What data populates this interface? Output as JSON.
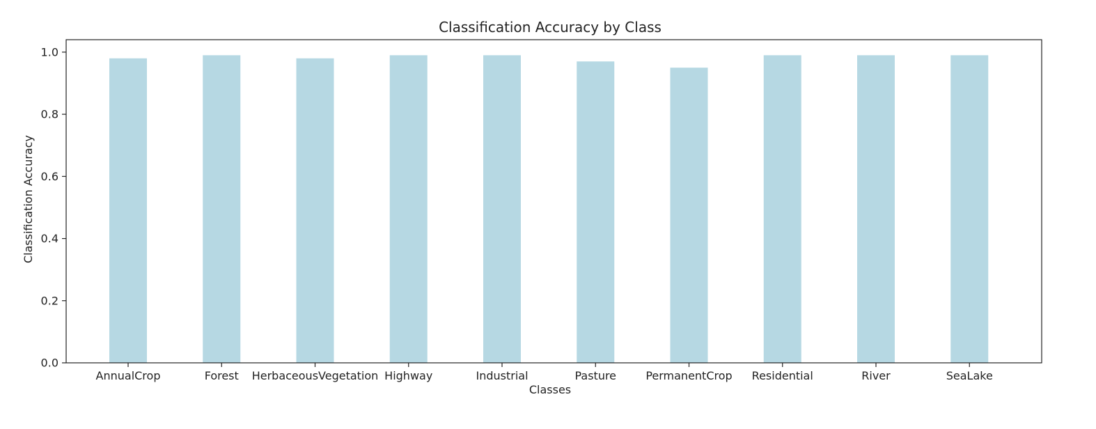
{
  "chart_data": {
    "type": "bar",
    "title": "Classification Accuracy by Class",
    "xlabel": "Classes",
    "ylabel": "Classification Accuracy",
    "categories": [
      "AnnualCrop",
      "Forest",
      "HerbaceousVegetation",
      "Highway",
      "Industrial",
      "Pasture",
      "PermanentCrop",
      "Residential",
      "River",
      "SeaLake"
    ],
    "values": [
      0.98,
      0.99,
      0.98,
      0.99,
      0.99,
      0.97,
      0.95,
      0.99,
      0.99,
      0.99
    ],
    "ylim": [
      0,
      1.04
    ],
    "yticks": [
      "0.0",
      "0.2",
      "0.4",
      "0.6",
      "0.8",
      "1.0"
    ],
    "grid": false,
    "bar_color": "#b6d8e3",
    "axis_color": "#222222"
  }
}
